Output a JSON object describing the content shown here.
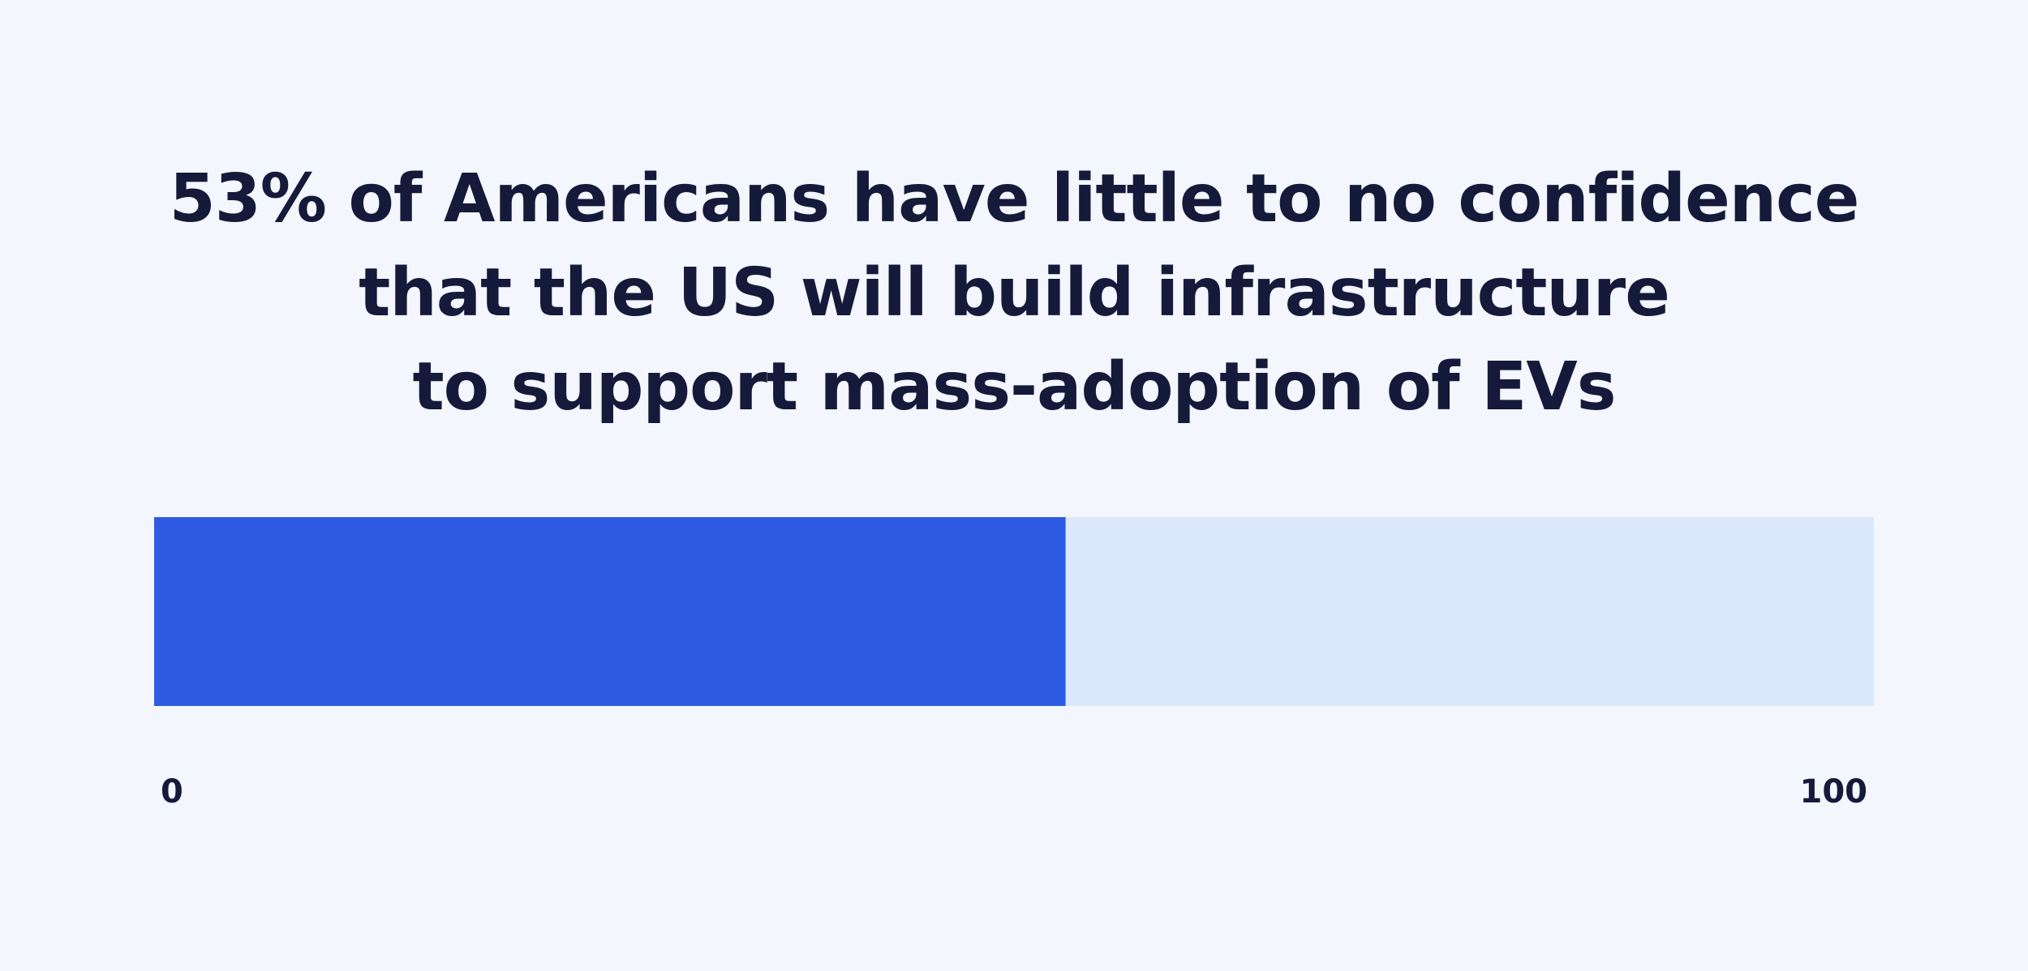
{
  "chart_data": {
    "type": "bar",
    "orientation": "horizontal",
    "stacked_progress": true,
    "title_lines": [
      "53% of Americans have little to no confidence",
      "that the US will build infrastructure",
      "to support mass-adoption of EVs"
    ],
    "value": 53,
    "xlim": [
      0,
      100
    ],
    "tick_labels": [
      "0",
      "100"
    ],
    "grid": false,
    "legend": "none",
    "colors": {
      "fill": "#2d5be3",
      "track": "#dce8fc",
      "background": "#f3f7fd",
      "text": "#151a3a"
    }
  }
}
